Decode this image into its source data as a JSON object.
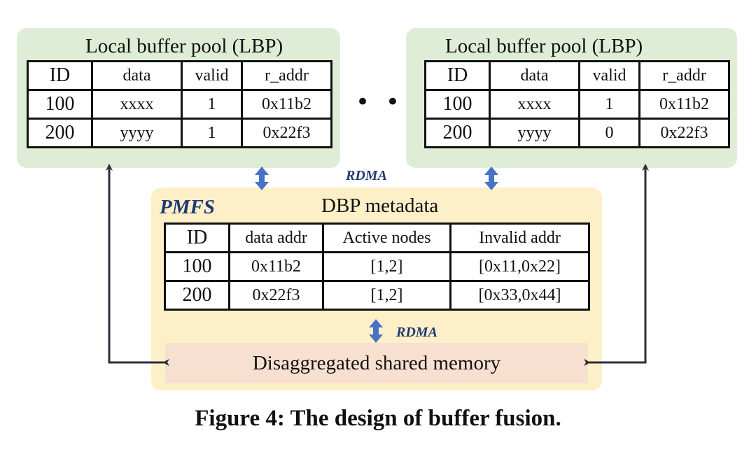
{
  "lbp_left": {
    "title": "Local buffer pool (LBP)",
    "headers": [
      "ID",
      "data",
      "valid",
      "r_addr"
    ],
    "rows": [
      [
        "100",
        "xxxx",
        "1",
        "0x11b2"
      ],
      [
        "200",
        "yyyy",
        "1",
        "0x22f3"
      ]
    ]
  },
  "lbp_right": {
    "title": "Local buffer pool (LBP)",
    "headers": [
      "ID",
      "data",
      "valid",
      "r_addr"
    ],
    "rows": [
      [
        "100",
        "xxxx",
        "1",
        "0x11b2"
      ],
      [
        "200",
        "yyyy",
        "0",
        "0x22f3"
      ]
    ]
  },
  "ellipsis": "• • •",
  "rdma_top": "RDMA",
  "rdma_bottom": "RDMA",
  "pmfs": {
    "label": "PMFS",
    "title": "DBP metadata",
    "headers": [
      "ID",
      "data addr",
      "Active nodes",
      "Invalid addr"
    ],
    "rows": [
      [
        "100",
        "0x11b2",
        "[1,2]",
        "[0x11,0x22]"
      ],
      [
        "200",
        "0x22f3",
        "[1,2]",
        "[0x33,0x44]"
      ]
    ]
  },
  "shared_memory": "Disaggregated shared memory",
  "caption": "Figure 4: The design of buffer fusion.",
  "colors": {
    "lbp_bg": "#dfedd6",
    "pmfs_bg": "#fdf0c8",
    "dsm_bg": "#f7e0d0",
    "rdma_arrow": "#4a72c4",
    "label_text": "#1f3a73",
    "line": "#2a2f3a"
  }
}
